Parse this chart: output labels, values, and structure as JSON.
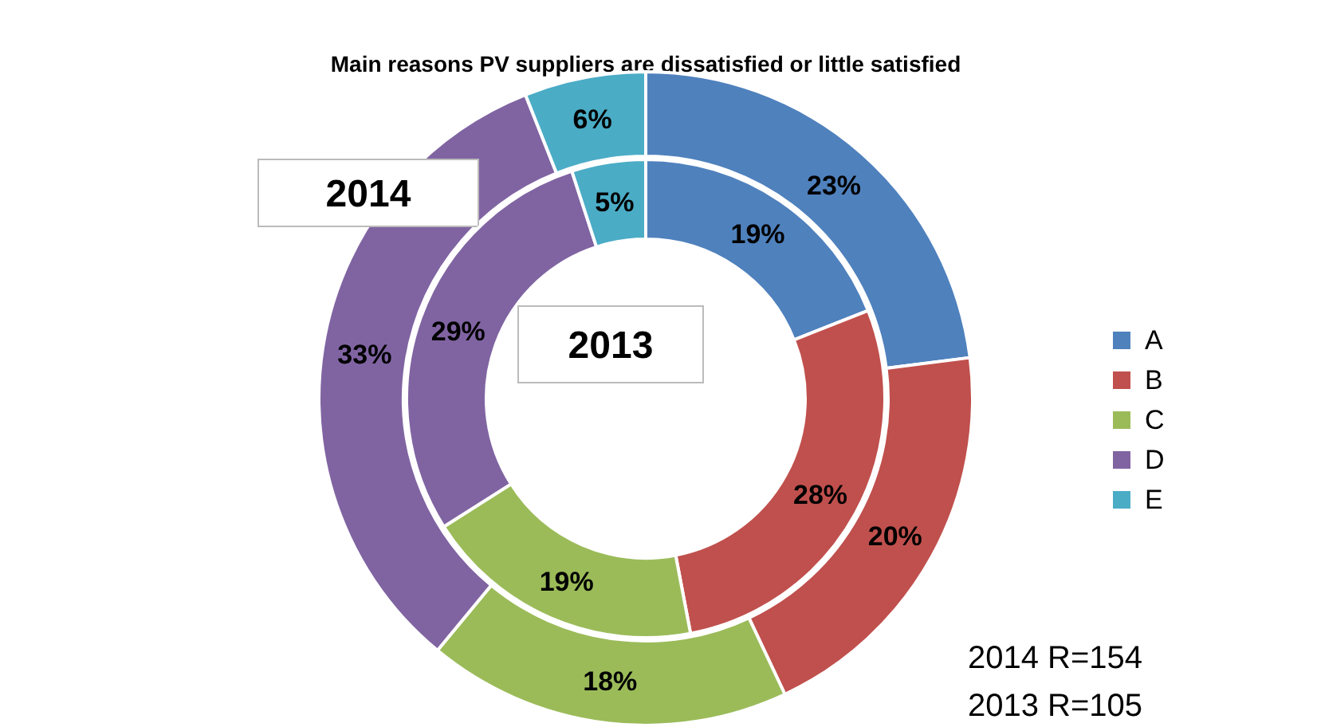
{
  "chart_data": {
    "type": "donut",
    "title": "Main reasons PV suppliers are dissatisfied or little satisfied",
    "categories": [
      "A",
      "B",
      "C",
      "D",
      "E"
    ],
    "colors": [
      "#4f81bd",
      "#c0504d",
      "#9bbb59",
      "#8064a2",
      "#4bacc6"
    ],
    "series": [
      {
        "name": "2014",
        "values": [
          23,
          20,
          18,
          33,
          6
        ],
        "value_labels": [
          "23%",
          "20%",
          "18%",
          "33%",
          "6%"
        ]
      },
      {
        "name": "2013",
        "values": [
          19,
          28,
          19,
          29,
          5
        ],
        "value_labels": [
          "19%",
          "28%",
          "19%",
          "29%",
          "5%"
        ]
      }
    ],
    "legend": "right",
    "annotations": [
      "2014 R=154",
      "2013 R=105"
    ]
  }
}
